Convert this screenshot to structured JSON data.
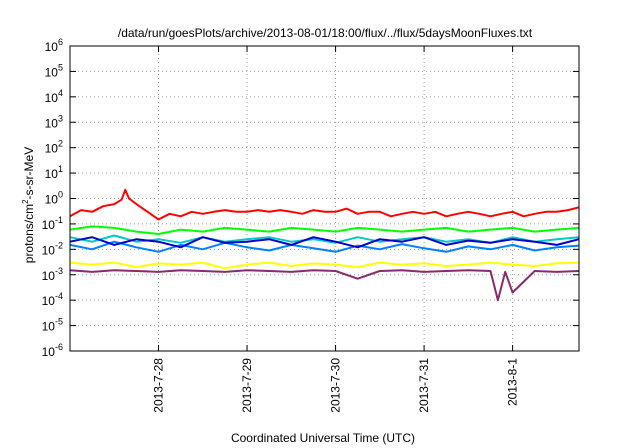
{
  "chart_data": {
    "type": "line",
    "title": "/data/run/goesPlots/archive/2013-08-01/18:00/flux/../flux/5daysMoonFluxes.txt",
    "xlabel": "Coordinated Universal Time (UTC)",
    "ylabel": {
      "pre": "protons/cm",
      "sup": "2",
      "post": "-s-sr-MeV"
    },
    "yscale": "log",
    "ylim": [
      1e-06,
      1000000.0
    ],
    "xlim": [
      "2013-07-27T00:00",
      "2013-08-01T18:00"
    ],
    "grid": true,
    "legend": "none",
    "yticks": [
      {
        "value": 1e-06,
        "base": "10",
        "exp": "-6"
      },
      {
        "value": 1e-05,
        "base": "10",
        "exp": "-5"
      },
      {
        "value": 0.0001,
        "base": "10",
        "exp": "-4"
      },
      {
        "value": 0.001,
        "base": "10",
        "exp": "-3"
      },
      {
        "value": 0.01,
        "base": "10",
        "exp": "-2"
      },
      {
        "value": 0.1,
        "base": "10",
        "exp": "-1"
      },
      {
        "value": 1.0,
        "base": "10",
        "exp": "0"
      },
      {
        "value": 10.0,
        "base": "10",
        "exp": "1"
      },
      {
        "value": 100.0,
        "base": "10",
        "exp": "2"
      },
      {
        "value": 1000.0,
        "base": "10",
        "exp": "3"
      },
      {
        "value": 10000.0,
        "base": "10",
        "exp": "4"
      },
      {
        "value": 100000.0,
        "base": "10",
        "exp": "5"
      },
      {
        "value": 1000000.0,
        "base": "10",
        "exp": "6"
      }
    ],
    "xticks": [
      {
        "value": "2013-07-28T00:00",
        "label": "2013-7-28"
      },
      {
        "value": "2013-07-29T00:00",
        "label": "2013-7-29"
      },
      {
        "value": "2013-07-30T00:00",
        "label": "2013-7-30"
      },
      {
        "value": "2013-07-31T00:00",
        "label": "2013-7-31"
      },
      {
        "value": "2013-08-01T00:00",
        "label": "2013-8-1"
      }
    ],
    "series": [
      {
        "color": "#ff0000",
        "x": [
          "2013-07-27T00:00",
          "2013-07-27T03:00",
          "2013-07-27T06:00",
          "2013-07-27T09:00",
          "2013-07-27T12:00",
          "2013-07-27T14:00",
          "2013-07-27T15:00",
          "2013-07-27T16:00",
          "2013-07-27T18:00",
          "2013-07-27T21:00",
          "2013-07-28T00:00",
          "2013-07-28T03:00",
          "2013-07-28T06:00",
          "2013-07-28T09:00",
          "2013-07-28T12:00",
          "2013-07-28T15:00",
          "2013-07-28T18:00",
          "2013-07-28T21:00",
          "2013-07-29T00:00",
          "2013-07-29T03:00",
          "2013-07-29T06:00",
          "2013-07-29T09:00",
          "2013-07-29T12:00",
          "2013-07-29T15:00",
          "2013-07-29T18:00",
          "2013-07-29T21:00",
          "2013-07-30T00:00",
          "2013-07-30T03:00",
          "2013-07-30T06:00",
          "2013-07-30T09:00",
          "2013-07-30T12:00",
          "2013-07-30T15:00",
          "2013-07-30T18:00",
          "2013-07-30T21:00",
          "2013-07-31T00:00",
          "2013-07-31T03:00",
          "2013-07-31T06:00",
          "2013-07-31T09:00",
          "2013-07-31T12:00",
          "2013-07-31T15:00",
          "2013-07-31T18:00",
          "2013-07-31T21:00",
          "2013-08-01T00:00",
          "2013-08-01T03:00",
          "2013-08-01T06:00",
          "2013-08-01T09:00",
          "2013-08-01T12:00",
          "2013-08-01T15:00",
          "2013-08-01T18:00"
        ],
        "y": [
          0.2,
          0.35,
          0.3,
          0.5,
          0.6,
          0.9,
          2.2,
          1.0,
          0.6,
          0.3,
          0.15,
          0.25,
          0.2,
          0.3,
          0.25,
          0.3,
          0.35,
          0.3,
          0.3,
          0.35,
          0.3,
          0.35,
          0.3,
          0.25,
          0.35,
          0.3,
          0.3,
          0.4,
          0.25,
          0.3,
          0.3,
          0.2,
          0.25,
          0.3,
          0.25,
          0.3,
          0.2,
          0.25,
          0.3,
          0.25,
          0.2,
          0.25,
          0.3,
          0.2,
          0.25,
          0.3,
          0.3,
          0.35,
          0.45
        ]
      },
      {
        "color": "#00ff00",
        "x": [
          "2013-07-27T00:00",
          "2013-07-27T06:00",
          "2013-07-27T12:00",
          "2013-07-27T18:00",
          "2013-07-28T00:00",
          "2013-07-28T06:00",
          "2013-07-28T12:00",
          "2013-07-28T18:00",
          "2013-07-29T00:00",
          "2013-07-29T06:00",
          "2013-07-29T12:00",
          "2013-07-29T18:00",
          "2013-07-30T00:00",
          "2013-07-30T06:00",
          "2013-07-30T12:00",
          "2013-07-30T18:00",
          "2013-07-31T00:00",
          "2013-07-31T06:00",
          "2013-07-31T12:00",
          "2013-07-31T18:00",
          "2013-08-01T00:00",
          "2013-08-01T06:00",
          "2013-08-01T12:00",
          "2013-08-01T18:00"
        ],
        "y": [
          0.06,
          0.08,
          0.07,
          0.05,
          0.04,
          0.06,
          0.05,
          0.07,
          0.06,
          0.05,
          0.07,
          0.06,
          0.05,
          0.07,
          0.06,
          0.05,
          0.06,
          0.07,
          0.05,
          0.06,
          0.07,
          0.05,
          0.06,
          0.07
        ]
      },
      {
        "color": "#00c8c8",
        "x": [
          "2013-07-27T00:00",
          "2013-07-27T06:00",
          "2013-07-27T12:00",
          "2013-07-27T18:00",
          "2013-07-28T00:00",
          "2013-07-28T06:00",
          "2013-07-28T12:00",
          "2013-07-28T18:00",
          "2013-07-29T00:00",
          "2013-07-29T06:00",
          "2013-07-29T12:00",
          "2013-07-29T18:00",
          "2013-07-30T00:00",
          "2013-07-30T06:00",
          "2013-07-30T12:00",
          "2013-07-30T18:00",
          "2013-07-31T00:00",
          "2013-07-31T06:00",
          "2013-07-31T12:00",
          "2013-07-31T18:00",
          "2013-08-01T00:00",
          "2013-08-01T06:00",
          "2013-08-01T12:00",
          "2013-08-01T18:00"
        ],
        "y": [
          0.03,
          0.02,
          0.035,
          0.02,
          0.025,
          0.018,
          0.03,
          0.02,
          0.025,
          0.03,
          0.02,
          0.025,
          0.018,
          0.03,
          0.02,
          0.025,
          0.03,
          0.02,
          0.025,
          0.018,
          0.03,
          0.02,
          0.025,
          0.03
        ]
      },
      {
        "color": "#0080ff",
        "x": [
          "2013-07-27T00:00",
          "2013-07-27T06:00",
          "2013-07-27T12:00",
          "2013-07-27T18:00",
          "2013-07-28T00:00",
          "2013-07-28T06:00",
          "2013-07-28T12:00",
          "2013-07-28T18:00",
          "2013-07-29T00:00",
          "2013-07-29T06:00",
          "2013-07-29T12:00",
          "2013-07-29T18:00",
          "2013-07-30T00:00",
          "2013-07-30T06:00",
          "2013-07-30T12:00",
          "2013-07-30T18:00",
          "2013-07-31T00:00",
          "2013-07-31T06:00",
          "2013-07-31T12:00",
          "2013-07-31T18:00",
          "2013-08-01T00:00",
          "2013-08-01T06:00",
          "2013-08-01T12:00",
          "2013-08-01T18:00"
        ],
        "y": [
          0.015,
          0.01,
          0.02,
          0.012,
          0.008,
          0.015,
          0.01,
          0.018,
          0.012,
          0.009,
          0.015,
          0.011,
          0.008,
          0.014,
          0.01,
          0.016,
          0.011,
          0.008,
          0.013,
          0.01,
          0.015,
          0.009,
          0.012,
          0.014
        ]
      },
      {
        "color": "#0000c8",
        "x": [
          "2013-07-27T00:00",
          "2013-07-27T06:00",
          "2013-07-27T12:00",
          "2013-07-27T18:00",
          "2013-07-28T00:00",
          "2013-07-28T06:00",
          "2013-07-28T12:00",
          "2013-07-28T18:00",
          "2013-07-29T00:00",
          "2013-07-29T06:00",
          "2013-07-29T12:00",
          "2013-07-29T18:00",
          "2013-07-30T00:00",
          "2013-07-30T06:00",
          "2013-07-30T12:00",
          "2013-07-30T18:00",
          "2013-07-31T00:00",
          "2013-07-31T06:00",
          "2013-07-31T12:00",
          "2013-07-31T18:00",
          "2013-08-01T00:00",
          "2013-08-01T06:00",
          "2013-08-01T12:00",
          "2013-08-01T18:00"
        ],
        "y": [
          0.02,
          0.03,
          0.015,
          0.025,
          0.02,
          0.012,
          0.03,
          0.018,
          0.02,
          0.025,
          0.015,
          0.03,
          0.02,
          0.012,
          0.025,
          0.02,
          0.03,
          0.015,
          0.022,
          0.018,
          0.025,
          0.02,
          0.015,
          0.025
        ]
      },
      {
        "color": "#ffff00",
        "x": [
          "2013-07-27T00:00",
          "2013-07-27T06:00",
          "2013-07-27T12:00",
          "2013-07-27T18:00",
          "2013-07-28T00:00",
          "2013-07-28T06:00",
          "2013-07-28T12:00",
          "2013-07-28T18:00",
          "2013-07-29T00:00",
          "2013-07-29T06:00",
          "2013-07-29T12:00",
          "2013-07-29T18:00",
          "2013-07-30T00:00",
          "2013-07-30T06:00",
          "2013-07-30T12:00",
          "2013-07-30T18:00",
          "2013-07-31T00:00",
          "2013-07-31T06:00",
          "2013-07-31T12:00",
          "2013-07-31T18:00",
          "2013-08-01T00:00",
          "2013-08-01T06:00",
          "2013-08-01T12:00",
          "2013-08-01T18:00"
        ],
        "y": [
          0.003,
          0.0025,
          0.003,
          0.002,
          0.0028,
          0.0025,
          0.003,
          0.0018,
          0.0025,
          0.003,
          0.0022,
          0.0028,
          0.0025,
          0.002,
          0.003,
          0.0025,
          0.0028,
          0.0022,
          0.0025,
          0.003,
          0.0025,
          0.0022,
          0.0028,
          0.003
        ]
      },
      {
        "color": "#8b2a6b",
        "x": [
          "2013-07-27T00:00",
          "2013-07-27T06:00",
          "2013-07-27T12:00",
          "2013-07-27T18:00",
          "2013-07-28T00:00",
          "2013-07-28T06:00",
          "2013-07-28T12:00",
          "2013-07-28T18:00",
          "2013-07-29T00:00",
          "2013-07-29T06:00",
          "2013-07-29T12:00",
          "2013-07-29T18:00",
          "2013-07-30T00:00",
          "2013-07-30T06:00",
          "2013-07-30T12:00",
          "2013-07-30T18:00",
          "2013-07-31T00:00",
          "2013-07-31T06:00",
          "2013-07-31T12:00",
          "2013-07-31T18:00",
          "2013-07-31T20:00",
          "2013-07-31T22:00",
          "2013-08-01T00:00",
          "2013-08-01T06:00",
          "2013-08-01T12:00",
          "2013-08-01T18:00"
        ],
        "y": [
          0.0015,
          0.0013,
          0.0015,
          0.0014,
          0.0013,
          0.0015,
          0.0014,
          0.0013,
          0.0015,
          0.0014,
          0.0013,
          0.0015,
          0.0014,
          0.0007,
          0.0014,
          0.0015,
          0.0013,
          0.0014,
          0.0015,
          0.0014,
          0.0001,
          0.0013,
          0.0002,
          0.0014,
          0.0013,
          0.0014
        ]
      }
    ]
  }
}
